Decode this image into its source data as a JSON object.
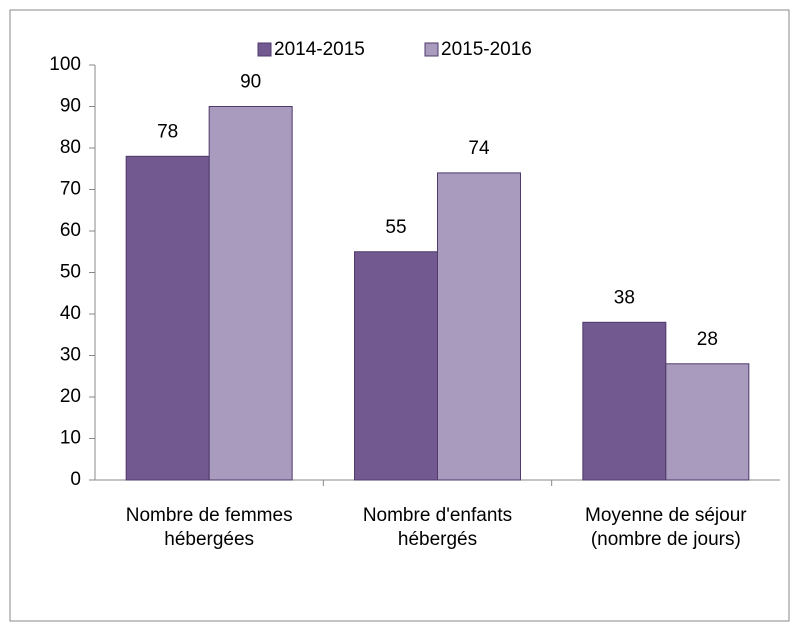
{
  "chart_data": {
    "type": "bar",
    "categories": [
      "Nombre de femmes\nhébergées",
      "Nombre d'enfants\nhébergés",
      "Moyenne de séjour\n(nombre de jours)"
    ],
    "series": [
      {
        "name": "2014-2015",
        "color": "#725990",
        "values": [
          78,
          55,
          38
        ]
      },
      {
        "name": "2015-2016",
        "color": "#a99bbd",
        "values": [
          90,
          74,
          28
        ]
      }
    ],
    "ylim": [
      0,
      100
    ],
    "yticks": [
      0,
      10,
      20,
      30,
      40,
      50,
      60,
      70,
      80,
      90,
      100
    ],
    "legend": "top"
  }
}
